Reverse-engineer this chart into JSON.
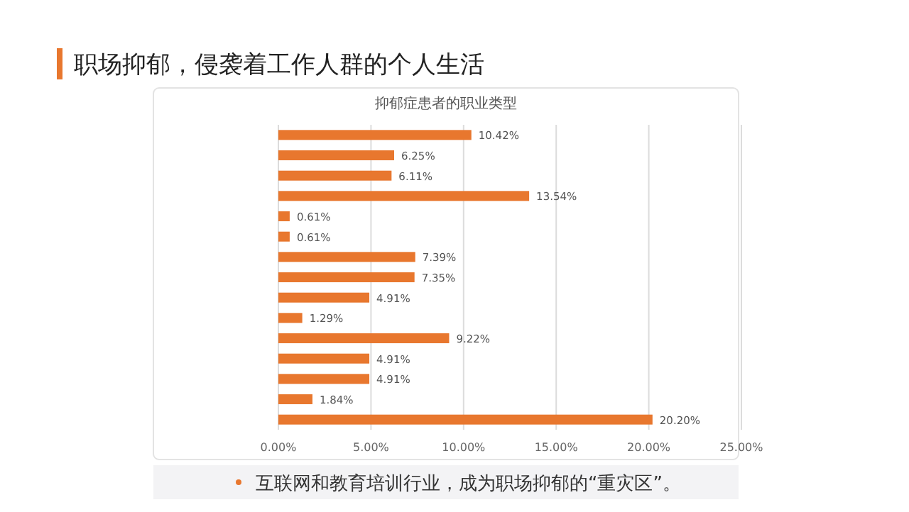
{
  "chart_data": {
    "type": "bar",
    "orientation": "horizontal",
    "title": "抑郁症患者的职业类型",
    "subtitle": "职场抑郁，侵袭着工作人群的个人生活",
    "categories": [
      null,
      null,
      null,
      null,
      null,
      null,
      null,
      null,
      null,
      null,
      null,
      null,
      null,
      null,
      null
    ],
    "values": [
      10.42,
      6.25,
      6.11,
      13.54,
      0.61,
      0.61,
      7.39,
      7.35,
      4.91,
      1.29,
      9.22,
      4.91,
      4.91,
      1.84,
      20.2
    ],
    "value_labels": [
      "10.42%",
      "6.25%",
      "6.11%",
      "13.54%",
      "0.61%",
      "0.61%",
      "7.39%",
      "7.35%",
      "4.91%",
      "1.29%",
      "9.22%",
      "4.91%",
      "4.91%",
      "1.84%",
      "20.20%"
    ],
    "color": "#e8772e",
    "xlim": [
      0,
      25
    ],
    "xticks": [
      {
        "value": 0,
        "label": "0.00%"
      },
      {
        "value": 5,
        "label": "5.00%"
      },
      {
        "value": 10,
        "label": "10.00%"
      },
      {
        "value": 15,
        "label": "15.00%"
      },
      {
        "value": 20,
        "label": "20.00%"
      },
      {
        "value": 25,
        "label": "25.00%"
      }
    ],
    "grid": "x",
    "annotations": [
      "互联网和教育培训行业，成为职场抑郁的“重灾区”。"
    ]
  }
}
